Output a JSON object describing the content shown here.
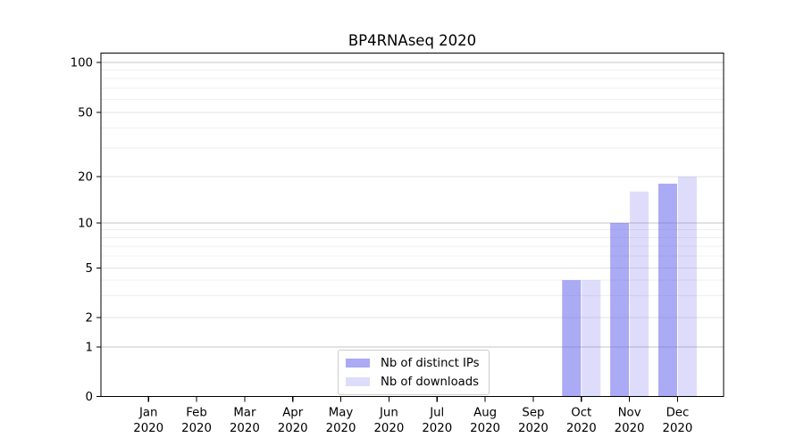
{
  "chart_data": {
    "type": "bar",
    "title": "BP4RNAseq 2020",
    "categories": [
      "Jan 2020",
      "Feb 2020",
      "Mar 2020",
      "Apr 2020",
      "May 2020",
      "Jun 2020",
      "Jul 2020",
      "Aug 2020",
      "Sep 2020",
      "Oct 2020",
      "Nov 2020",
      "Dec 2020"
    ],
    "series": [
      {
        "name": "Nb of distinct IPs",
        "color": "rgba(101,101,237,0.55)",
        "values": [
          0,
          0,
          0,
          0,
          0,
          0,
          0,
          0,
          0,
          4,
          10,
          18
        ]
      },
      {
        "name": "Nb of downloads",
        "color": "rgba(101,101,237,0.22)",
        "values": [
          0,
          0,
          0,
          0,
          0,
          0,
          0,
          0,
          0,
          4,
          16,
          20
        ]
      }
    ],
    "xlabel": "",
    "ylabel": "",
    "yscale": "symlog",
    "yticks": [
      0,
      1,
      2,
      5,
      10,
      20,
      50,
      100
    ],
    "ylim": [
      0,
      115
    ],
    "minor_gridlines": [
      3,
      4,
      6,
      7,
      8,
      9,
      30,
      40,
      60,
      70,
      80,
      90
    ],
    "grid": "on",
    "legend_position": "lower-center-inside",
    "colors": {
      "background": "#ffffff",
      "axis": "#000000",
      "tick_label": "#000000",
      "grid_major": "#c6c6c6",
      "grid_mid": "#e3e3e3",
      "grid_minor": "#efefef",
      "legend_border": "#cccccc"
    }
  }
}
